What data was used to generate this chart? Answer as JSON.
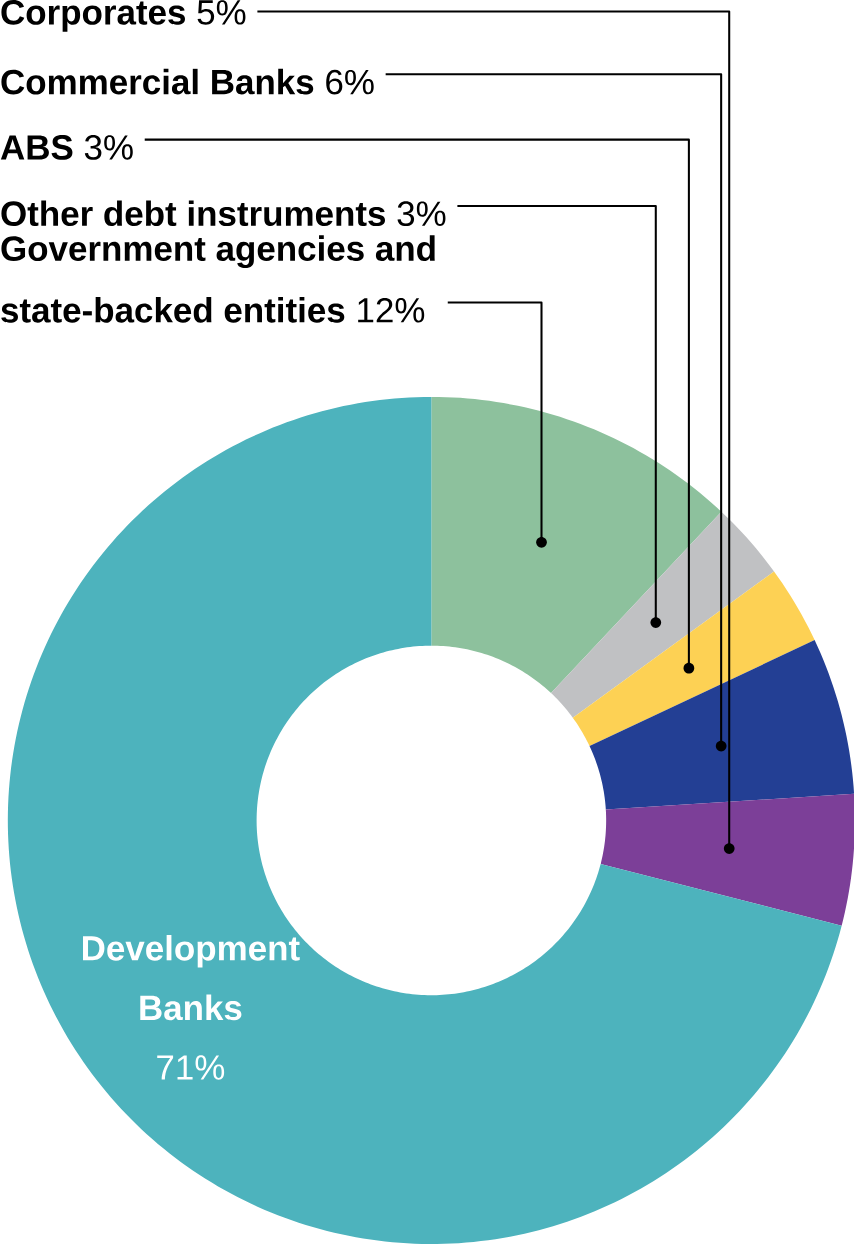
{
  "chart_data": {
    "type": "donut",
    "categories": [
      "Government agencies and state-backed entities",
      "Other debt instruments",
      "ABS",
      "Commercial Banks",
      "Corporates",
      "Development Banks"
    ],
    "values": [
      12,
      3,
      3,
      6,
      5,
      71
    ],
    "value_labels": [
      "12%",
      "3%",
      "3%",
      "6%",
      "5%",
      "71%"
    ],
    "colors": [
      "#8dc19d",
      "#c0c1c3",
      "#fdd154",
      "#233f94",
      "#7c3f98",
      "#4db3bd"
    ]
  }
}
